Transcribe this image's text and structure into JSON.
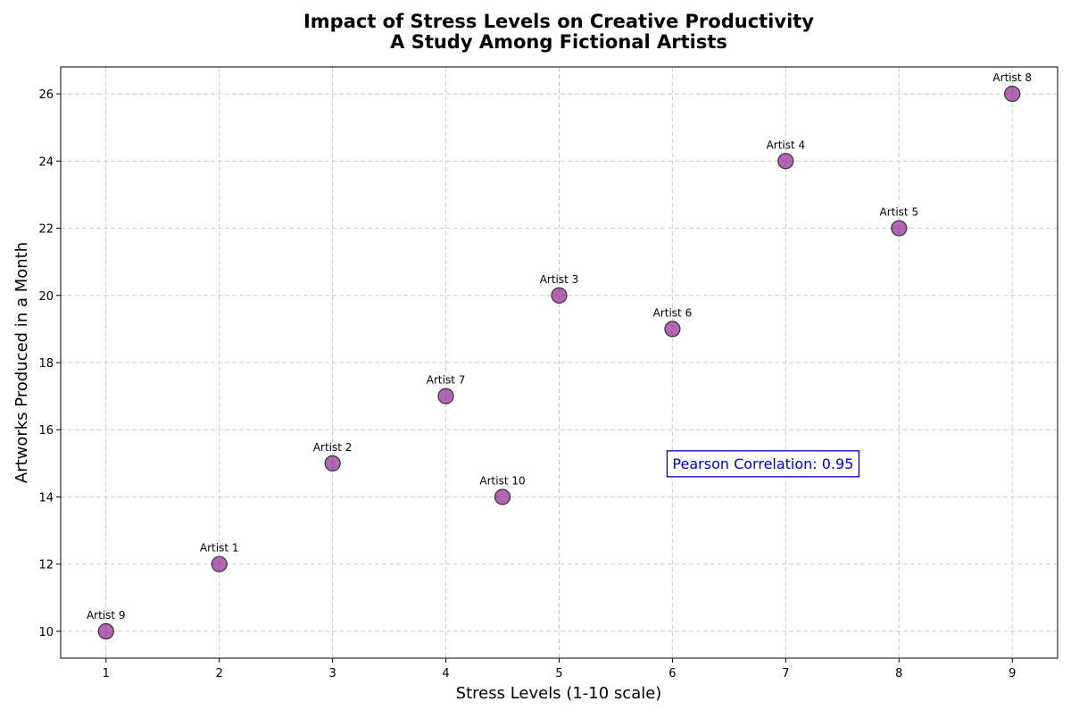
{
  "chart_data": {
    "type": "scatter",
    "title_line1": "Impact of Stress Levels on Creative Productivity",
    "title_line2": "A Study Among Fictional Artists",
    "xlabel": "Stress Levels (1-10 scale)",
    "ylabel": "Artworks Produced in a Month",
    "xlim": [
      0.6,
      9.4
    ],
    "ylim": [
      9.2,
      26.8
    ],
    "xticks": [
      1,
      2,
      3,
      4,
      5,
      6,
      7,
      8,
      9
    ],
    "yticks": [
      10,
      12,
      14,
      16,
      18,
      20,
      22,
      24,
      26
    ],
    "grid": true,
    "marker_color": "#800080",
    "marker_edge_color": "#333333",
    "annotation": {
      "text": "Pearson Correlation: 0.95",
      "x": 6,
      "y": 15,
      "color": "#0000cc"
    },
    "points": [
      {
        "label": "Artist 1",
        "x": 2,
        "y": 12
      },
      {
        "label": "Artist 2",
        "x": 3,
        "y": 15
      },
      {
        "label": "Artist 3",
        "x": 5,
        "y": 20
      },
      {
        "label": "Artist 4",
        "x": 7,
        "y": 24
      },
      {
        "label": "Artist 5",
        "x": 8,
        "y": 22
      },
      {
        "label": "Artist 6",
        "x": 6,
        "y": 19
      },
      {
        "label": "Artist 7",
        "x": 4,
        "y": 17
      },
      {
        "label": "Artist 8",
        "x": 9,
        "y": 26
      },
      {
        "label": "Artist 9",
        "x": 1,
        "y": 10
      },
      {
        "label": "Artist 10",
        "x": 4.5,
        "y": 14
      }
    ]
  }
}
